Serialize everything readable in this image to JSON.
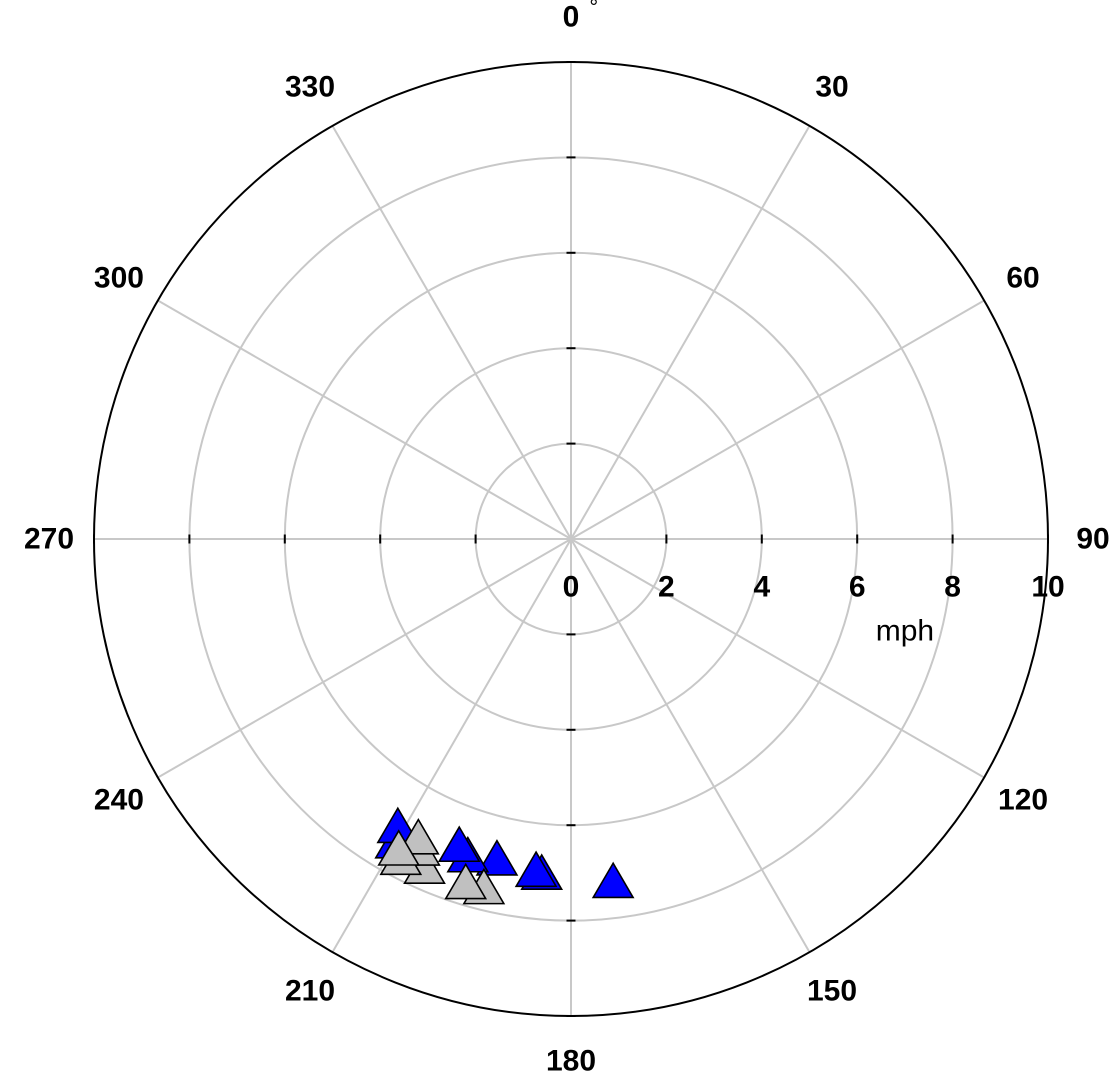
{
  "chart_data": {
    "type": "scatter",
    "subtype": "polar",
    "angle_unit_symbol": "°",
    "angle_ticks": [
      0,
      30,
      60,
      90,
      120,
      150,
      180,
      210,
      240,
      270,
      300,
      330
    ],
    "angle_tick_labels": [
      "0",
      "30",
      "60",
      "90",
      "120",
      "150",
      "180",
      "210",
      "240",
      "270",
      "300",
      "330"
    ],
    "radial_ticks": [
      0,
      2,
      4,
      6,
      8,
      10
    ],
    "radial_tick_labels": [
      "0",
      "2",
      "4",
      "6",
      "8",
      "10"
    ],
    "radial_unit": "mph",
    "rlim": [
      0,
      10
    ],
    "angle_direction": "clockwise",
    "zero_angle_location": "top",
    "grid": true,
    "marker": "triangle",
    "series": [
      {
        "color": "#0000ff",
        "points": [
          {
            "angle": 173,
            "r": 7.25
          },
          {
            "angle": 185,
            "r": 7.05
          },
          {
            "angle": 186,
            "r": 7.0
          },
          {
            "angle": 193,
            "r": 6.9
          },
          {
            "angle": 198,
            "r": 7.0
          },
          {
            "angle": 200,
            "r": 6.85
          },
          {
            "angle": 210,
            "r": 7.35
          },
          {
            "angle": 211,
            "r": 7.05
          }
        ]
      },
      {
        "color": "#c0c0c0",
        "points": [
          {
            "angle": 194,
            "r": 7.55
          },
          {
            "angle": 197,
            "r": 7.55
          },
          {
            "angle": 204,
            "r": 7.55
          },
          {
            "angle": 206,
            "r": 7.25
          },
          {
            "angle": 207,
            "r": 7.05
          },
          {
            "angle": 208,
            "r": 7.6
          },
          {
            "angle": 209,
            "r": 7.45
          }
        ]
      }
    ]
  }
}
